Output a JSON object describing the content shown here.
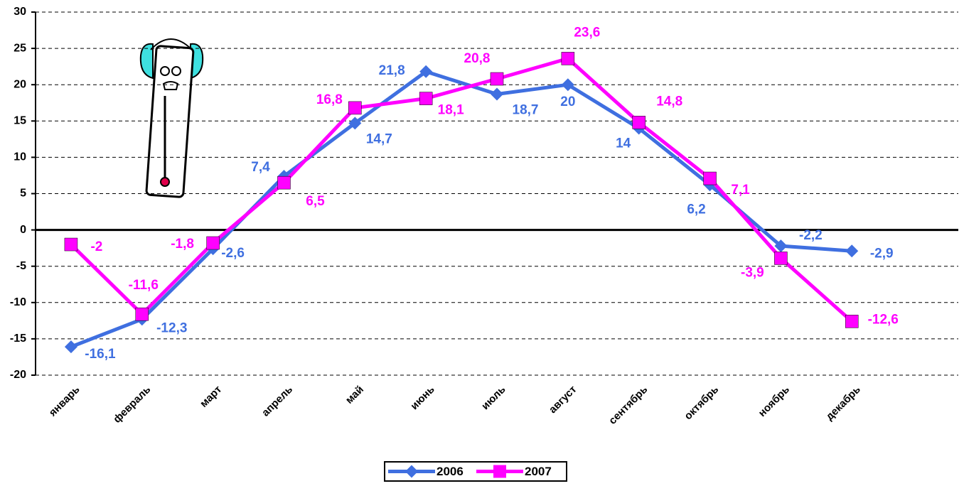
{
  "chart_data": {
    "type": "line",
    "categories": [
      "январь",
      "февраль",
      "март",
      "апрель",
      "май",
      "июнь",
      "июль",
      "август",
      "сентябрь",
      "октябрь",
      "ноябрь",
      "декабрь",
      null
    ],
    "series": [
      {
        "name": "2006",
        "color": "#3f6fe0",
        "marker": "diamond",
        "values": [
          -16.1,
          -12.3,
          -2.6,
          7.4,
          14.7,
          21.8,
          18.7,
          20,
          14,
          6.2,
          -2.2,
          -2.9,
          null
        ],
        "value_labels": [
          "-16,1",
          "-12,3",
          "-2,6",
          "7,4",
          "14,7",
          "21,8",
          "18,7",
          "20",
          "14",
          "6,2",
          "-2,2",
          "-2,9",
          null
        ]
      },
      {
        "name": "2007",
        "color": "#ff00ff",
        "marker": "square",
        "values": [
          -2,
          -11.6,
          -1.8,
          6.5,
          16.8,
          18.1,
          20.8,
          23.6,
          14.8,
          7.1,
          -3.9,
          -12.6,
          null
        ],
        "value_labels": [
          "-2",
          "-11,6",
          "-1,8",
          "6,5",
          "16,8",
          "18,1",
          "20,8",
          "23,6",
          "14,8",
          "7,1",
          "-3,9",
          "-12,6",
          null
        ]
      }
    ],
    "ylim": [
      -20,
      30
    ],
    "yticks": [
      -20,
      -15,
      -10,
      -5,
      0,
      5,
      10,
      15,
      20,
      25,
      30
    ],
    "grid": true,
    "legend": "bottom"
  }
}
